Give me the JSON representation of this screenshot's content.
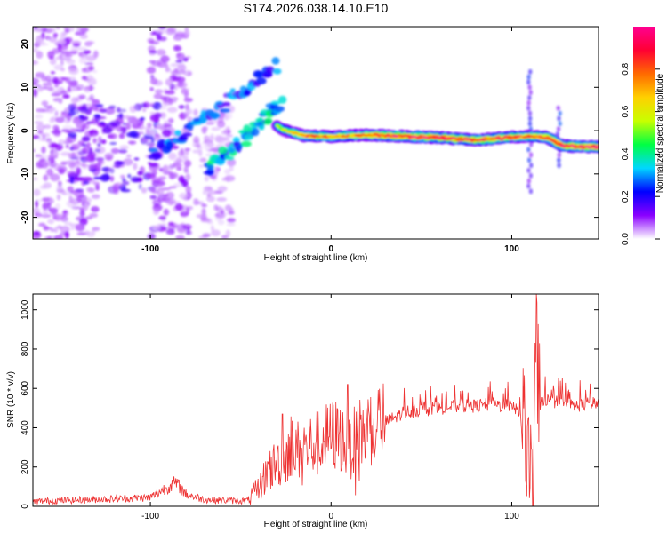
{
  "title": "S174.2026.038.14.10.E10",
  "chart_data": [
    {
      "type": "heatmap",
      "name": "spectrogram",
      "xlabel": "Height of straight line (km)",
      "ylabel": "Frequency (Hz)",
      "xlim": [
        -165,
        148
      ],
      "ylim": [
        -25,
        24
      ],
      "xticks": [
        -100,
        0,
        100
      ],
      "yticks": [
        -20,
        -10,
        0,
        10,
        20
      ],
      "colorbar": {
        "label": "Normalized spectral amplitude",
        "range": [
          0,
          1
        ],
        "ticks": [
          0.0,
          0.2,
          0.4,
          0.6,
          0.8
        ],
        "colors": [
          "#ffffff",
          "#8a00ff",
          "#0000ff",
          "#00d7ff",
          "#00ff44",
          "#c8ff00",
          "#ffd000",
          "#ff6a00",
          "#ff0033",
          "#ff0090"
        ]
      },
      "features": {
        "noise_regions": [
          {
            "x_range": [
              -165,
              -130
            ],
            "f_range": [
              -25,
              24
            ],
            "amplitude": 0.08
          },
          {
            "x_range": [
              -145,
              -95
            ],
            "f_range": [
              -14,
              6
            ],
            "amplitude": 0.14
          },
          {
            "x_range": [
              -100,
              -78
            ],
            "f_range": [
              -25,
              24
            ],
            "amplitude": 0.09
          },
          {
            "x_range": [
              -75,
              -55
            ],
            "f_range": [
              -25,
              5
            ],
            "amplitude": 0.06
          }
        ],
        "ridges": [
          {
            "x": [
              -100,
              -30
            ],
            "f": [
              -6,
              15
            ],
            "amplitude": 0.22
          },
          {
            "x": [
              -68,
              -28
            ],
            "f": [
              -9,
              6
            ],
            "amplitude": 0.3
          }
        ],
        "main_band": {
          "x": [
            -30,
            -25,
            -15,
            0,
            10,
            20,
            40,
            60,
            80,
            100,
            110,
            120,
            128,
            148
          ],
          "f": [
            1,
            0,
            -1.2,
            -1.4,
            -1.2,
            -1.0,
            -1.3,
            -1.6,
            -2.2,
            -1.5,
            -1.3,
            -1.6,
            -3.5,
            -3.8
          ],
          "amplitude": [
            0.55,
            0.6,
            0.8,
            0.7,
            0.75,
            0.8,
            0.9,
            0.92,
            0.88,
            0.85,
            0.8,
            0.88,
            0.9,
            0.95
          ]
        },
        "spikes": [
          {
            "x": 110,
            "f_range": [
              -14,
              14
            ],
            "amplitude": 0.18
          },
          {
            "x": 126,
            "f_range": [
              -8,
              6
            ],
            "amplitude": 0.2
          }
        ]
      }
    },
    {
      "type": "line",
      "name": "snr",
      "xlabel": "Height of straight line (km)",
      "ylabel": "SNR (10 * v/v)",
      "xlim": [
        -165,
        148
      ],
      "ylim": [
        0,
        1080
      ],
      "xticks": [
        -100,
        0,
        100
      ],
      "yticks": [
        0,
        200,
        400,
        600,
        800,
        1000
      ],
      "color": "#ee3333",
      "x": [
        -165,
        -150,
        -130,
        -115,
        -100,
        -92,
        -86,
        -80,
        -70,
        -60,
        -50,
        -46,
        -40,
        -35,
        -30,
        -25,
        -22,
        -20,
        -15,
        -10,
        -5,
        0,
        5,
        10,
        15,
        20,
        25,
        30,
        35,
        40,
        50,
        60,
        70,
        80,
        90,
        95,
        98,
        100,
        104,
        107,
        108,
        110,
        112,
        113,
        115,
        118,
        120,
        125,
        130,
        135,
        140,
        148
      ],
      "y": [
        25,
        30,
        35,
        40,
        45,
        90,
        120,
        60,
        35,
        30,
        28,
        30,
        90,
        180,
        220,
        250,
        320,
        280,
        300,
        310,
        330,
        360,
        360,
        290,
        360,
        390,
        420,
        430,
        450,
        480,
        490,
        500,
        510,
        510,
        520,
        510,
        520,
        500,
        490,
        470,
        250,
        180,
        20,
        1000,
        560,
        540,
        540,
        530,
        520,
        510,
        520,
        525
      ],
      "spikes": [
        {
          "x": -27,
          "y": 470
        },
        {
          "x": 9,
          "y": 620
        },
        {
          "x": 113,
          "y": 1070
        },
        {
          "x": 111,
          "y": 30
        }
      ]
    }
  ]
}
